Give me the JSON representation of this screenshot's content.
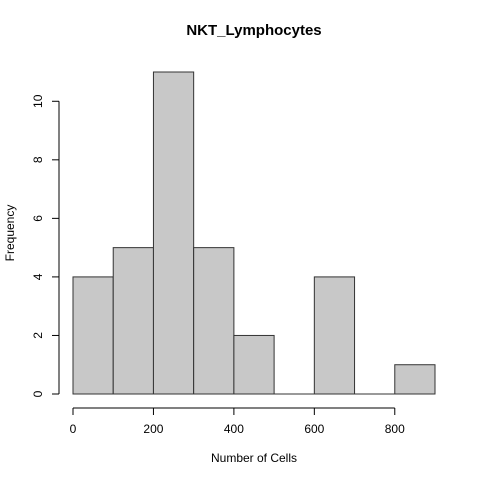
{
  "chart_data": {
    "type": "bar",
    "title": "NKT_Lymphocytes",
    "xlabel": "Number of Cells",
    "ylabel": "Frequency",
    "bins": [
      {
        "start": 0,
        "end": 100,
        "count": 4
      },
      {
        "start": 100,
        "end": 200,
        "count": 5
      },
      {
        "start": 200,
        "end": 300,
        "count": 11
      },
      {
        "start": 300,
        "end": 400,
        "count": 5
      },
      {
        "start": 400,
        "end": 500,
        "count": 2
      },
      {
        "start": 500,
        "end": 600,
        "count": 0
      },
      {
        "start": 600,
        "end": 700,
        "count": 4
      },
      {
        "start": 700,
        "end": 800,
        "count": 0
      },
      {
        "start": 800,
        "end": 900,
        "count": 1
      }
    ],
    "xticks": [
      0,
      200,
      400,
      600,
      800
    ],
    "yticks": [
      0,
      2,
      4,
      6,
      8,
      10
    ],
    "xlim": [
      0,
      900
    ],
    "ylim": [
      0,
      11
    ],
    "grid": false,
    "colors": {
      "bar_fill": "#c8c8c8",
      "bar_stroke": "#333333",
      "axis": "#000000"
    }
  }
}
